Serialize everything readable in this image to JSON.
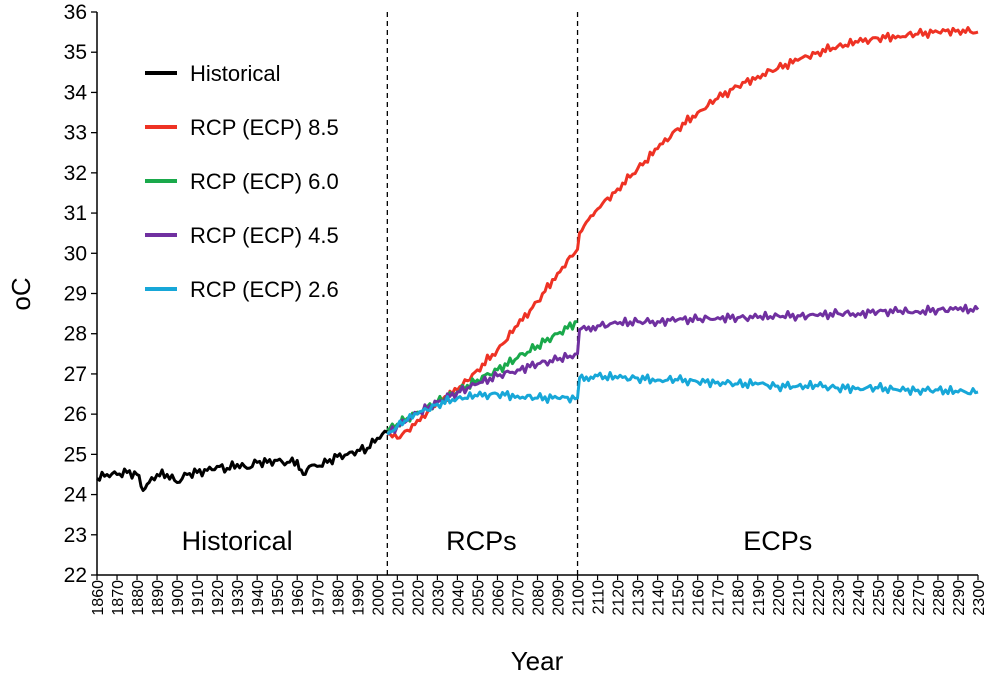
{
  "chart_data": {
    "type": "line",
    "xlabel": "Year",
    "ylabel": "oC",
    "xlim": [
      1860,
      2300
    ],
    "ylim": [
      22,
      36
    ],
    "yticks": [
      22,
      23,
      24,
      25,
      26,
      27,
      28,
      29,
      30,
      31,
      32,
      33,
      34,
      35,
      36
    ],
    "xticks": [
      1860,
      1870,
      1880,
      1890,
      1900,
      1910,
      1920,
      1930,
      1940,
      1950,
      1960,
      1970,
      1980,
      1990,
      2000,
      2010,
      2020,
      2030,
      2040,
      2050,
      2060,
      2070,
      2080,
      2090,
      2100,
      2110,
      2120,
      2130,
      2140,
      2150,
      2160,
      2170,
      2180,
      2190,
      2200,
      2210,
      2220,
      2230,
      2240,
      2250,
      2260,
      2270,
      2280,
      2290,
      2300
    ],
    "grid": false,
    "legend_position": "top-left",
    "dividers": [
      2005,
      2100
    ],
    "region_labels": [
      {
        "text": "Historical",
        "x": 1930
      },
      {
        "text": "RCPs",
        "x": 2052
      },
      {
        "text": "ECPs",
        "x": 2200
      }
    ],
    "series": [
      {
        "name": "Historical",
        "color": "#000000",
        "x": [
          1860,
          1865,
          1870,
          1875,
          1880,
          1883,
          1886,
          1890,
          1895,
          1900,
          1905,
          1910,
          1915,
          1920,
          1925,
          1930,
          1935,
          1940,
          1945,
          1950,
          1955,
          1960,
          1963,
          1966,
          1970,
          1975,
          1980,
          1985,
          1990,
          1995,
          2000,
          2005
        ],
        "y": [
          24.4,
          24.5,
          24.5,
          24.55,
          24.5,
          24.1,
          24.3,
          24.5,
          24.5,
          24.3,
          24.5,
          24.55,
          24.6,
          24.7,
          24.65,
          24.75,
          24.65,
          24.8,
          24.8,
          24.85,
          24.8,
          24.85,
          24.5,
          24.7,
          24.7,
          24.8,
          24.95,
          25.0,
          25.1,
          25.15,
          25.4,
          25.55
        ]
      },
      {
        "name": "RCP (ECP) 8.5",
        "color": "#ee3224",
        "x": [
          2005,
          2010,
          2015,
          2020,
          2025,
          2030,
          2040,
          2050,
          2060,
          2070,
          2080,
          2090,
          2100,
          2101,
          2110,
          2120,
          2130,
          2140,
          2150,
          2160,
          2170,
          2180,
          2190,
          2200,
          2210,
          2220,
          2230,
          2240,
          2250,
          2260,
          2270,
          2280,
          2290,
          2300
        ],
        "y": [
          25.5,
          25.4,
          25.6,
          25.85,
          26.05,
          26.3,
          26.6,
          27.1,
          27.6,
          28.2,
          28.8,
          29.5,
          30.1,
          30.5,
          31.1,
          31.6,
          32.1,
          32.6,
          33.1,
          33.5,
          33.85,
          34.15,
          34.4,
          34.6,
          34.8,
          35.0,
          35.15,
          35.25,
          35.35,
          35.4,
          35.45,
          35.5,
          35.55,
          35.5
        ]
      },
      {
        "name": "RCP (ECP) 6.0",
        "color": "#1aa94b",
        "x": [
          2005,
          2010,
          2015,
          2020,
          2030,
          2040,
          2050,
          2060,
          2070,
          2080,
          2090,
          2100
        ],
        "y": [
          25.6,
          25.75,
          25.9,
          26.05,
          26.3,
          26.55,
          26.85,
          27.1,
          27.4,
          27.7,
          28.0,
          28.3
        ]
      },
      {
        "name": "RCP (ECP) 4.5",
        "color": "#7030a0",
        "x": [
          2005,
          2010,
          2015,
          2020,
          2030,
          2040,
          2050,
          2060,
          2070,
          2080,
          2090,
          2100,
          2101,
          2110,
          2120,
          2130,
          2140,
          2150,
          2160,
          2170,
          2180,
          2190,
          2200,
          2210,
          2220,
          2230,
          2240,
          2250,
          2260,
          2270,
          2280,
          2290,
          2300
        ],
        "y": [
          25.5,
          25.7,
          25.85,
          26.0,
          26.3,
          26.55,
          26.75,
          26.95,
          27.1,
          27.25,
          27.35,
          27.5,
          28.1,
          28.2,
          28.25,
          28.3,
          28.3,
          28.35,
          28.35,
          28.4,
          28.4,
          28.4,
          28.45,
          28.45,
          28.45,
          28.5,
          28.5,
          28.55,
          28.55,
          28.55,
          28.6,
          28.6,
          28.6
        ]
      },
      {
        "name": "RCP (ECP) 2.6",
        "color": "#17a7d8",
        "x": [
          2005,
          2010,
          2015,
          2020,
          2030,
          2040,
          2050,
          2060,
          2070,
          2080,
          2090,
          2100,
          2101,
          2110,
          2120,
          2130,
          2140,
          2150,
          2160,
          2170,
          2180,
          2190,
          2200,
          2210,
          2220,
          2230,
          2240,
          2250,
          2260,
          2270,
          2280,
          2290,
          2300
        ],
        "y": [
          25.5,
          25.7,
          25.85,
          26.0,
          26.25,
          26.4,
          26.45,
          26.5,
          26.45,
          26.4,
          26.4,
          26.4,
          26.9,
          26.95,
          26.9,
          26.9,
          26.85,
          26.85,
          26.8,
          26.8,
          26.75,
          26.75,
          26.7,
          26.7,
          26.7,
          26.65,
          26.65,
          26.65,
          26.6,
          26.6,
          26.6,
          26.55,
          26.55
        ]
      }
    ]
  }
}
